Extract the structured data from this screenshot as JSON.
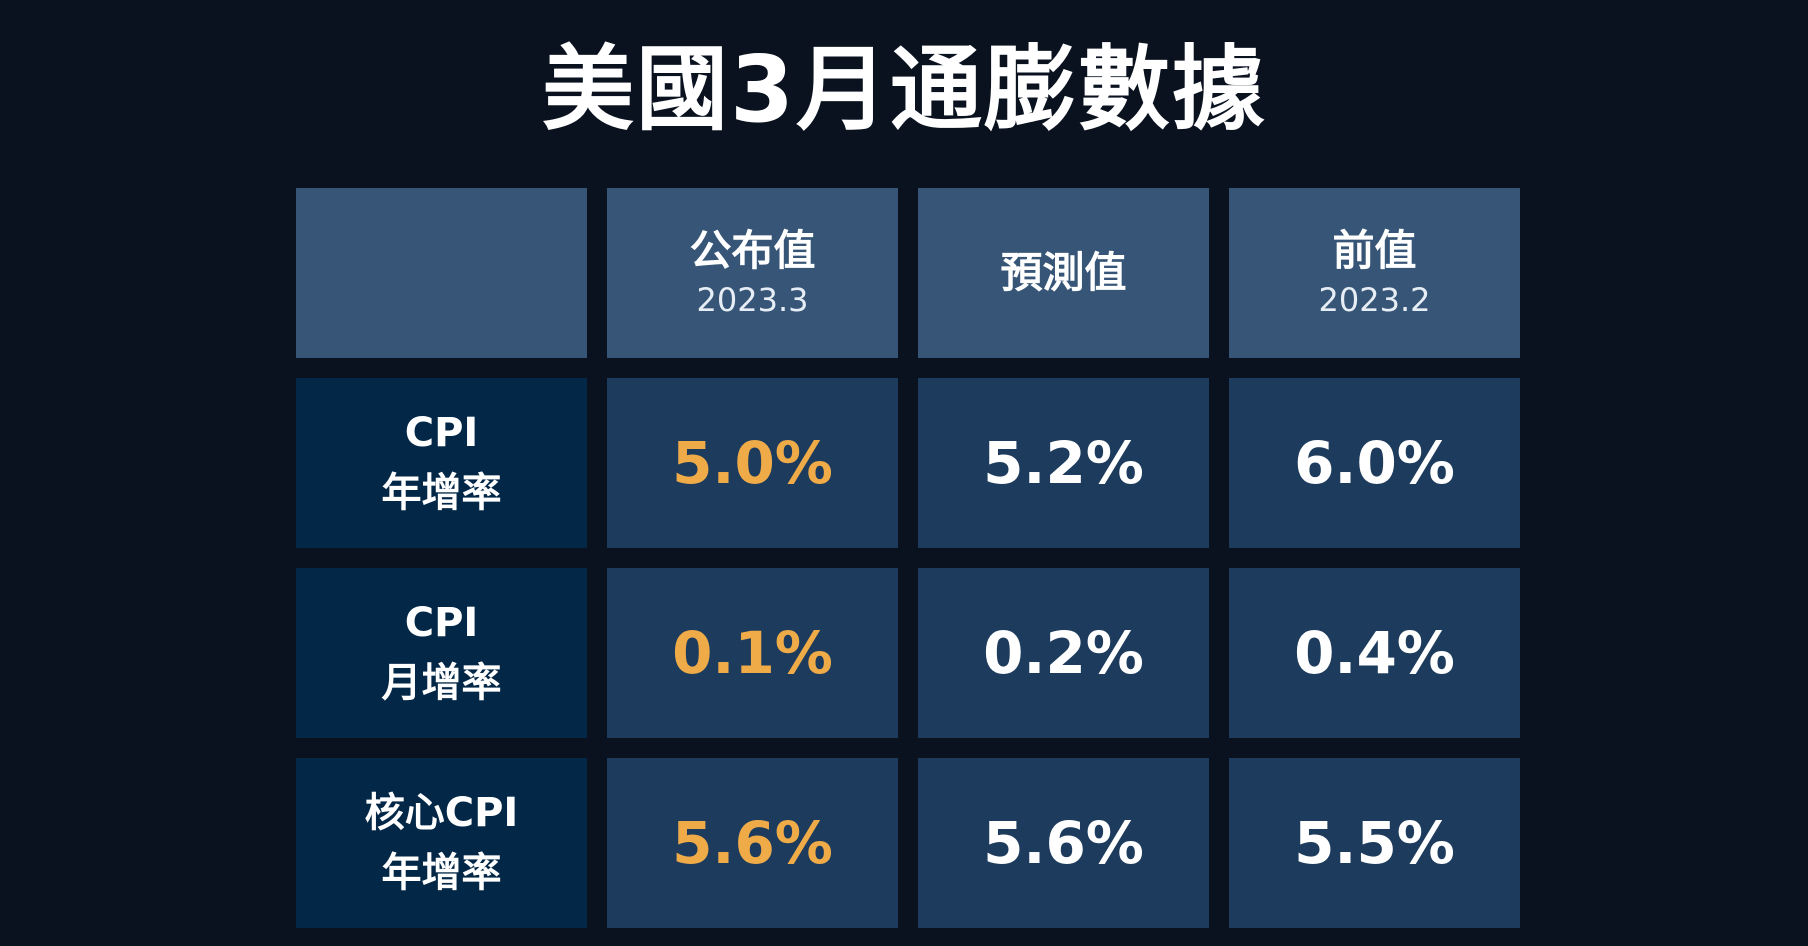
{
  "title": "美國3月通膨數據",
  "colors": {
    "background": "#0a1220",
    "header_cell": "#365577",
    "label_cell": "#032747",
    "data_cell": "#1d3b5c",
    "highlight_value": "#f0ab49",
    "text": "#ffffff"
  },
  "table": {
    "columns": [
      {
        "label": "",
        "sub": ""
      },
      {
        "label": "公布值",
        "sub": "2023.3"
      },
      {
        "label": "預測值",
        "sub": ""
      },
      {
        "label": "前值",
        "sub": "2023.2"
      }
    ],
    "rows": [
      {
        "label1": "CPI",
        "label2": "年增率",
        "values": [
          "5.0%",
          "5.2%",
          "6.0%"
        ]
      },
      {
        "label1": "CPI",
        "label2": "月增率",
        "values": [
          "0.1%",
          "0.2%",
          "0.4%"
        ]
      },
      {
        "label1": "核心CPI",
        "label2": "年增率",
        "values": [
          "5.6%",
          "5.6%",
          "5.5%"
        ]
      }
    ]
  }
}
